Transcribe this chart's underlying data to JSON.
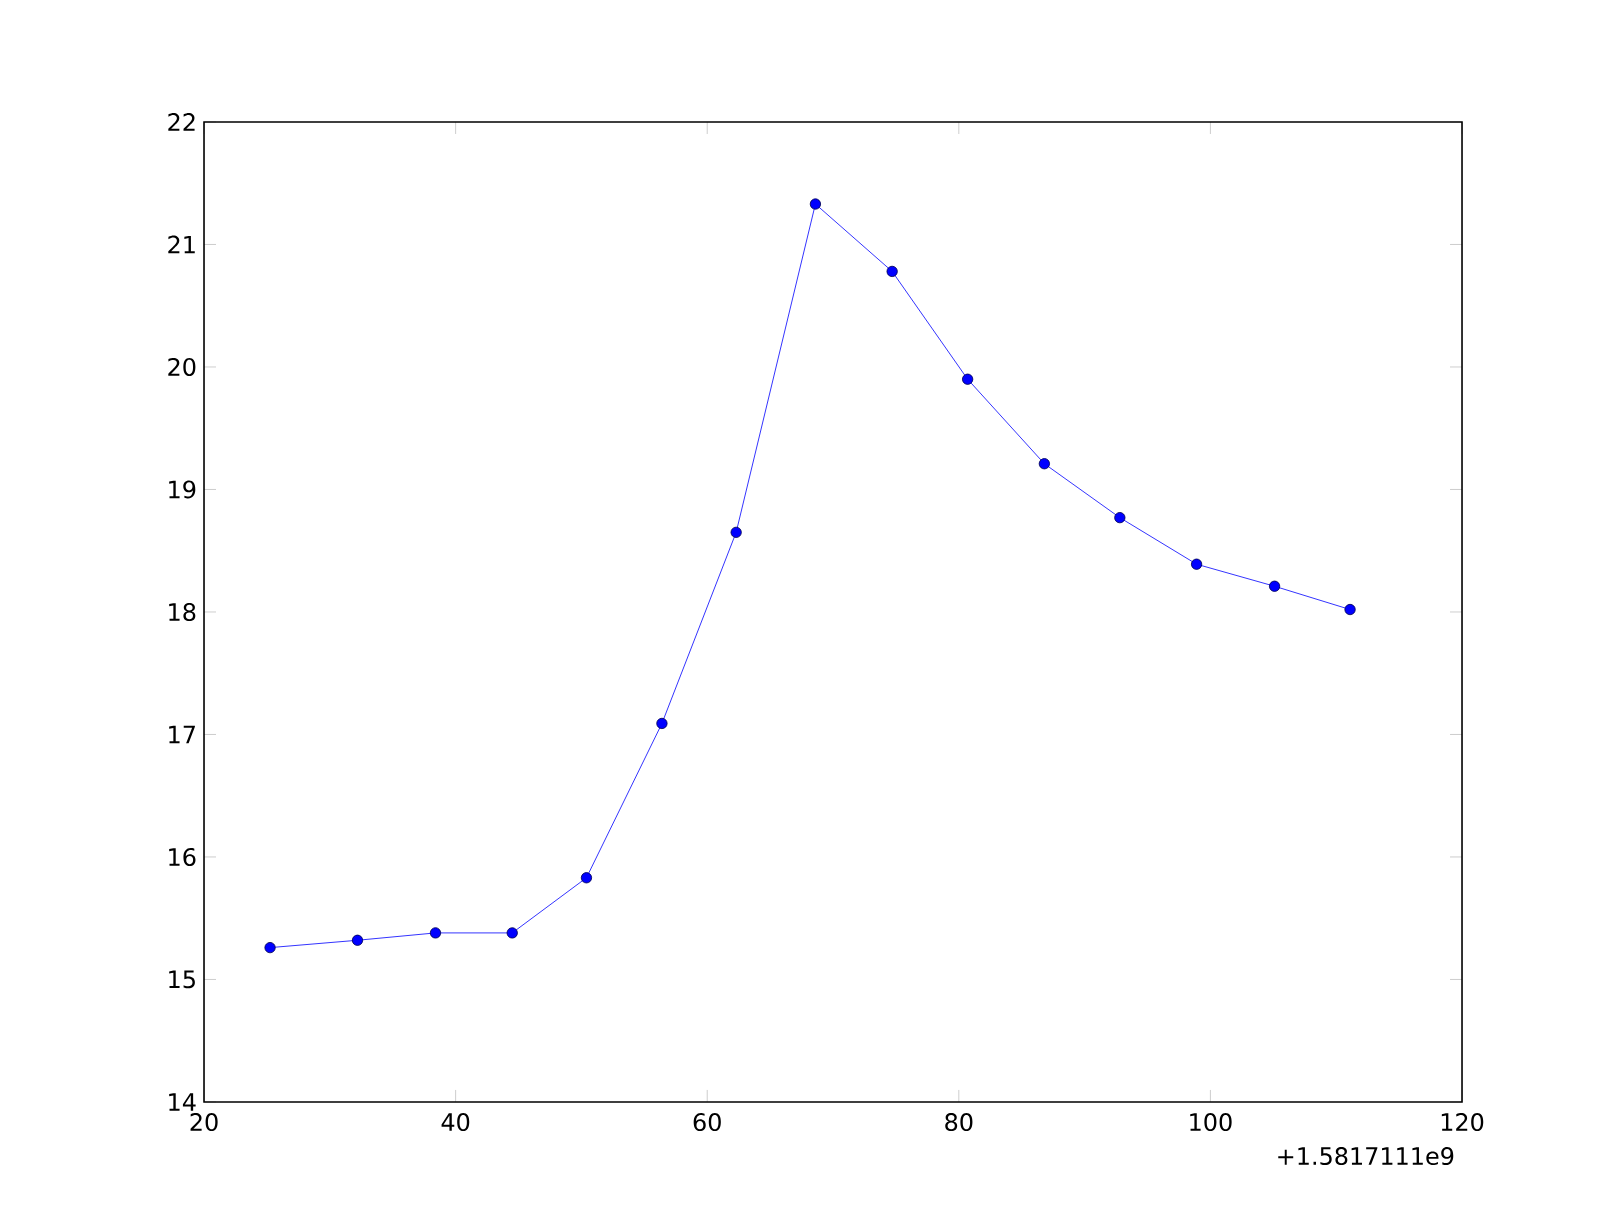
{
  "chart_data": {
    "type": "line",
    "x": [
      25.25,
      32.2,
      38.4,
      44.5,
      50.4,
      56.4,
      62.3,
      68.6,
      74.7,
      80.7,
      86.8,
      92.8,
      98.9,
      105.1,
      111.1
    ],
    "values": [
      15.26,
      15.32,
      15.38,
      15.38,
      15.83,
      17.09,
      18.65,
      21.33,
      20.78,
      19.9,
      19.21,
      18.77,
      18.39,
      18.21,
      18.02
    ],
    "color": "#0000ff",
    "marker": "circle",
    "line_style": "solid",
    "xlim": [
      20,
      120
    ],
    "xticks": [
      20,
      40,
      60,
      80,
      100,
      120
    ],
    "ylim": [
      14,
      22
    ],
    "yticks": [
      14,
      15,
      16,
      17,
      18,
      19,
      20,
      21,
      22
    ],
    "annotations": [
      "+1.5817111e9"
    ]
  }
}
